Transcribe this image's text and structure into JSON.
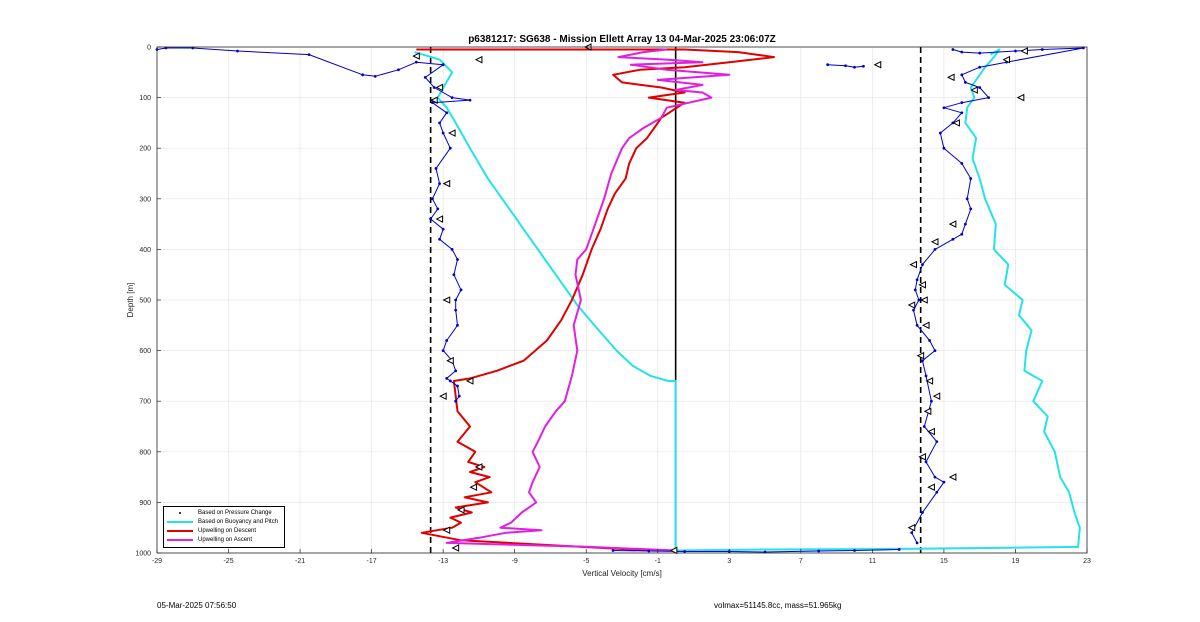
{
  "footer": {
    "left": "05-Mar-2025 07:56:50",
    "right": "volmax=51145.8cc, mass=51.965kg"
  },
  "legend": {
    "items": [
      {
        "label": "Based on Pressure Change",
        "color": "#000000",
        "kind": "dot"
      },
      {
        "label": "Based on Buoyancy and Pitch",
        "color": "#22e3e8",
        "kind": "line"
      },
      {
        "label": "Upwelling on Descent",
        "color": "#e00000",
        "kind": "line"
      },
      {
        "label": "Upwelling on Ascent",
        "color": "#e020e0",
        "kind": "line"
      }
    ]
  },
  "chart_data": {
    "type": "line",
    "title": "p6381217: SG638 - Mission Ellett Array 13 04-Mar-2025 23:06:07Z",
    "xlabel": "Vertical Velocity [cm/s]",
    "ylabel": "Depth [m]",
    "xlim": [
      -29,
      23
    ],
    "ylim": [
      0,
      1000
    ],
    "y_reversed": true,
    "grid": true,
    "legend_position": "bottom-left",
    "xticks": [
      -29,
      -25,
      -21,
      -17,
      -13,
      -9,
      -5,
      -1,
      3,
      7,
      11,
      15,
      19,
      23
    ],
    "yticks": [
      0,
      100,
      200,
      300,
      400,
      500,
      600,
      700,
      800,
      900,
      1000
    ],
    "reference_lines": [
      {
        "x": -13.7,
        "style": "dashed",
        "color": "#000000"
      },
      {
        "x": 13.7,
        "style": "dashed",
        "color": "#000000"
      },
      {
        "x": 0,
        "style": "solid",
        "color": "#000000"
      }
    ],
    "series": [
      {
        "name": "Based on Buoyancy and Pitch",
        "color": "#22e3e8",
        "segments": [
          {
            "x": [
              -14.6,
              -13.2,
              -12.5,
              -12.9,
              -13.3,
              -12.8,
              -12.3,
              -11.5,
              -10.5,
              -9.5,
              -8.5,
              -7.5,
              -6.5,
              -5.5,
              -4.3,
              -3.3,
              -2.4,
              -1.4,
              -0.4,
              0,
              0,
              0,
              0,
              0,
              0,
              0,
              0
            ],
            "y": [
              10,
              25,
              50,
              75,
              100,
              120,
              150,
              200,
              260,
              310,
              360,
              410,
              460,
              510,
              560,
              600,
              630,
              650,
              660,
              660,
              700,
              800,
              900,
              950,
              990,
              995,
              995
            ]
          },
          {
            "x": [
              0,
              5,
              12,
              18,
              22.5,
              22.6,
              22.3,
              22.0,
              21.5,
              21.2,
              20.6,
              20.8,
              20.0,
              20.5,
              19.5,
              19.6,
              19.9,
              19.2,
              19.4,
              18.4,
              18.6,
              17.8,
              17.9,
              17.3,
              17.0,
              16.6,
              16.8,
              16.2,
              16.3,
              16.7,
              16.5,
              16.9,
              17.3,
              17.8,
              18.1,
              17.6
            ],
            "y": [
              995,
              993,
              992,
              990,
              988,
              950,
              920,
              880,
              850,
              800,
              760,
              730,
              700,
              660,
              640,
              600,
              560,
              530,
              500,
              470,
              430,
              400,
              350,
              300,
              260,
              220,
              180,
              150,
              120,
              100,
              80,
              60,
              40,
              20,
              5,
              15
            ]
          }
        ]
      },
      {
        "name": "Upwelling on Descent",
        "color": "#e00000",
        "x": [
          -14.5,
          0.5,
          3.5,
          4.5,
          5.5,
          3,
          0.5,
          -2,
          -3.5,
          -3.0,
          -0.8,
          0.5,
          -1.5,
          0.5,
          -0.8,
          -1.2,
          -1.6,
          -2.2,
          -2.6,
          -2.8,
          -3.4,
          -3.8,
          -4.2,
          -4.7,
          -5.2,
          -5.8,
          -6.4,
          -7.2,
          -8.5,
          -10,
          -11.5,
          -12.4,
          -12.3,
          -12.2,
          -11.5,
          -12.2,
          -11.2,
          -11.6,
          -10.7,
          -11.5,
          -10.4,
          -11.2,
          -10.3,
          -11.8,
          -10.5,
          -12.3,
          -11.4,
          -12.6,
          -12.0,
          -12.5,
          -14.2,
          -12.0,
          -1.5
        ],
        "y": [
          5,
          5,
          10,
          15,
          20,
          30,
          40,
          45,
          55,
          70,
          80,
          90,
          100,
          110,
          140,
          160,
          180,
          200,
          230,
          260,
          290,
          320,
          360,
          400,
          450,
          500,
          540,
          580,
          620,
          640,
          655,
          660,
          690,
          720,
          750,
          780,
          800,
          820,
          830,
          840,
          850,
          860,
          880,
          890,
          900,
          910,
          920,
          930,
          940,
          950,
          960,
          975,
          995
        ]
      },
      {
        "name": "Upwelling on Ascent",
        "color": "#e020e0",
        "x": [
          -0.5,
          -1.8,
          -3.2,
          -0.5,
          1.5,
          -2.5,
          -0.5,
          3,
          -1.0,
          1.5,
          0.0,
          1.5,
          2.0,
          -0.5,
          -0.8,
          -1.8,
          -2.6,
          -3.0,
          -3.6,
          -4.0,
          -4.5,
          -5.0,
          -5.5,
          -5.6,
          -5.3,
          -5.7,
          -5.5,
          -5.8,
          -6.2,
          -6.7,
          -7.3,
          -7.7,
          -8.0,
          -7.6,
          -8.0,
          -8.2,
          -7.8,
          -8.6,
          -9.2,
          -9.8,
          -7.5,
          -9.5,
          -11.0,
          -12.8,
          -4.8,
          0.0
        ],
        "y": [
          5,
          10,
          20,
          25,
          30,
          35,
          45,
          55,
          65,
          75,
          85,
          90,
          100,
          120,
          140,
          160,
          180,
          200,
          250,
          300,
          350,
          400,
          420,
          450,
          500,
          550,
          600,
          650,
          700,
          720,
          750,
          780,
          800,
          830,
          860,
          880,
          900,
          920,
          940,
          950,
          955,
          960,
          970,
          980,
          988,
          995
        ]
      },
      {
        "name": "Based on Pressure Change",
        "color": "#0000cc",
        "segments": [
          {
            "x": [
              -29.0,
              -28.5,
              -27.0,
              -24.5,
              -20.5,
              -17.5,
              -16.8,
              -15.5,
              -14.5,
              -13.0,
              -14.0,
              -13.5,
              -12.5,
              -11.5,
              -13.6,
              -12.8,
              -13.2,
              -13.0,
              -12.6,
              -13.4,
              -13.2,
              -13.6,
              -13.3,
              -13.7,
              -13.0,
              -13.2,
              -12.5,
              -12.2,
              -12.4,
              -12.0,
              -12.3,
              -12.3,
              -12.2,
              -12.8,
              -13.0,
              -12.5,
              -12.3,
              -12.8,
              -12.6,
              -12.2,
              -12.1,
              -12.3
            ],
            "y": [
              5,
              2,
              2,
              8,
              15,
              55,
              58,
              45,
              30,
              35,
              60,
              80,
              100,
              105,
              110,
              130,
              150,
              170,
              200,
              240,
              270,
              300,
              320,
              340,
              360,
              380,
              400,
              420,
              450,
              480,
              500,
              520,
              550,
              580,
              600,
              620,
              640,
              655,
              660,
              670,
              690,
              700
            ]
          },
          {
            "x": [
              15.5,
              16.0,
              17.0,
              19.0,
              20.5,
              22.8,
              18.5,
              17.0,
              16.0,
              16.2,
              17.0,
              17.5,
              16.0,
              15.0,
              16.0,
              15.5,
              14.8,
              15.0,
              16.0,
              16.5,
              16.3,
              16.5,
              16.2,
              16.0,
              15.5,
              14.5,
              13.8,
              13.5,
              13.4,
              13.6,
              13.3,
              13.5,
              14.2,
              14.5,
              13.8,
              14.0,
              14.3,
              13.9,
              14.6,
              14.0,
              14.5,
              15.0,
              14.6,
              13.8,
              13.2,
              13.5
            ],
            "y": [
              5,
              10,
              12,
              8,
              5,
              2,
              30,
              40,
              55,
              70,
              80,
              100,
              110,
              120,
              130,
              150,
              170,
              200,
              230,
              260,
              300,
              320,
              350,
              370,
              380,
              400,
              430,
              460,
              480,
              500,
              520,
              550,
              580,
              600,
              620,
              650,
              700,
              750,
              780,
              820,
              850,
              860,
              880,
              920,
              960,
              980
            ]
          },
          {
            "x": [
              8.5,
              9.5,
              10.0,
              10.5
            ],
            "y": [
              35,
              37,
              40,
              38
            ]
          },
          {
            "x": [
              -3.5,
              -1.5,
              0.5,
              3,
              5,
              8,
              10,
              12.5
            ],
            "y": [
              995,
              996,
              997,
              997,
              998,
              996,
              995,
              993
            ]
          }
        ]
      }
    ],
    "markers": {
      "color": "#000000",
      "points": [
        {
          "x": -4.9,
          "y": 0
        },
        {
          "x": -11.0,
          "y": 25
        },
        {
          "x": -14.5,
          "y": 18
        },
        {
          "x": -13.2,
          "y": 80
        },
        {
          "x": -13.5,
          "y": 105
        },
        {
          "x": -12.5,
          "y": 170
        },
        {
          "x": -12.8,
          "y": 270
        },
        {
          "x": -13.2,
          "y": 340
        },
        {
          "x": -12.8,
          "y": 500
        },
        {
          "x": -12.6,
          "y": 620
        },
        {
          "x": -13.0,
          "y": 690
        },
        {
          "x": -11.5,
          "y": 660
        },
        {
          "x": -11.0,
          "y": 830
        },
        {
          "x": -11.3,
          "y": 870
        },
        {
          "x": -12.0,
          "y": 915
        },
        {
          "x": -12.8,
          "y": 955
        },
        {
          "x": -12.3,
          "y": 990
        },
        {
          "x": -0.1,
          "y": 995
        },
        {
          "x": 11.3,
          "y": 35
        },
        {
          "x": 15.4,
          "y": 60
        },
        {
          "x": 16.7,
          "y": 85
        },
        {
          "x": 19.3,
          "y": 100
        },
        {
          "x": 18.5,
          "y": 25
        },
        {
          "x": 19.5,
          "y": 8
        },
        {
          "x": 15.7,
          "y": 150
        },
        {
          "x": 15.5,
          "y": 350
        },
        {
          "x": 14.5,
          "y": 385
        },
        {
          "x": 13.3,
          "y": 430
        },
        {
          "x": 13.8,
          "y": 470
        },
        {
          "x": 13.9,
          "y": 500
        },
        {
          "x": 13.2,
          "y": 510
        },
        {
          "x": 14.0,
          "y": 550
        },
        {
          "x": 13.7,
          "y": 610
        },
        {
          "x": 14.2,
          "y": 660
        },
        {
          "x": 14.1,
          "y": 720
        },
        {
          "x": 14.6,
          "y": 690
        },
        {
          "x": 14.3,
          "y": 760
        },
        {
          "x": 13.8,
          "y": 810
        },
        {
          "x": 14.3,
          "y": 870
        },
        {
          "x": 15.5,
          "y": 850
        },
        {
          "x": 13.2,
          "y": 950
        }
      ]
    }
  }
}
